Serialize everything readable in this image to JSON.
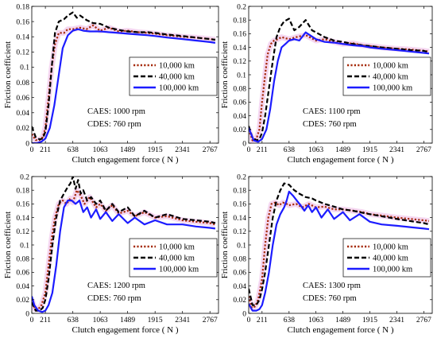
{
  "colors": {
    "series_10k": "#a52a0a",
    "series_40k": "#000000",
    "series_100k": "#1c1cff",
    "band": "#e8a6e0",
    "background": "#ffffff"
  },
  "chart_data": [
    {
      "type": "line",
      "panel": "top-left",
      "xlabel": "Clutch engagement force ( N )",
      "ylabel": "Friction coefficient",
      "xticks": [
        0,
        211,
        638,
        1063,
        1489,
        1915,
        2341,
        2767
      ],
      "yticks": [
        0,
        0.02,
        0.04,
        0.06,
        0.08,
        0.1,
        0.12,
        0.14,
        0.16,
        0.18
      ],
      "xlim": [
        0,
        2900
      ],
      "ylim": [
        0,
        0.18
      ],
      "legend_placement": "center-right",
      "annotation": [
        "CAES: 1000 rpm",
        "CDES: 760 rpm"
      ],
      "series": [
        {
          "name": "10,000 km",
          "style": "dotted",
          "x": [
            0,
            60,
            120,
            170,
            211,
            260,
            310,
            360,
            420,
            500,
            560,
            638,
            750,
            850,
            950,
            1063,
            1200,
            1350,
            1489,
            1650,
            1800,
            1915,
            2100,
            2341,
            2550,
            2767,
            2850
          ],
          "y": [
            0.012,
            0.004,
            0.004,
            0.008,
            0.02,
            0.06,
            0.1,
            0.13,
            0.145,
            0.145,
            0.15,
            0.15,
            0.152,
            0.15,
            0.155,
            0.148,
            0.152,
            0.147,
            0.148,
            0.146,
            0.145,
            0.144,
            0.142,
            0.14,
            0.139,
            0.137,
            0.136
          ]
        },
        {
          "name": "40,000 km",
          "style": "dashed",
          "x": [
            0,
            60,
            120,
            170,
            211,
            260,
            310,
            360,
            420,
            500,
            560,
            638,
            700,
            750,
            850,
            950,
            1063,
            1200,
            1350,
            1489,
            1650,
            1800,
            1915,
            2100,
            2341,
            2550,
            2767,
            2850
          ],
          "y": [
            0.022,
            0.008,
            0.005,
            0.006,
            0.015,
            0.05,
            0.1,
            0.145,
            0.16,
            0.163,
            0.168,
            0.172,
            0.165,
            0.168,
            0.162,
            0.158,
            0.157,
            0.152,
            0.149,
            0.147,
            0.146,
            0.146,
            0.145,
            0.143,
            0.141,
            0.139,
            0.137,
            0.136
          ]
        },
        {
          "name": "100,000 km",
          "style": "solid",
          "x": [
            0,
            80,
            150,
            211,
            280,
            350,
            420,
            480,
            560,
            638,
            720,
            800,
            900,
            1063,
            1200,
            1350,
            1489,
            1650,
            1800,
            1915,
            2100,
            2341,
            2550,
            2767,
            2850
          ],
          "y": [
            0.0,
            0.0,
            0.002,
            0.006,
            0.02,
            0.05,
            0.09,
            0.125,
            0.142,
            0.148,
            0.15,
            0.148,
            0.147,
            0.147,
            0.146,
            0.145,
            0.144,
            0.143,
            0.142,
            0.141,
            0.139,
            0.137,
            0.135,
            0.133,
            0.132
          ]
        }
      ]
    },
    {
      "type": "line",
      "panel": "top-right",
      "xlabel": "Clutch engagement force ( N )",
      "ylabel": "Friction coefficient",
      "xticks": [
        0,
        211,
        638,
        1063,
        1489,
        1915,
        2341,
        2767
      ],
      "yticks": [
        0,
        0.02,
        0.04,
        0.06,
        0.08,
        0.1,
        0.12,
        0.14,
        0.16,
        0.18,
        0.2
      ],
      "xlim": [
        0,
        2900
      ],
      "ylim": [
        0,
        0.2
      ],
      "legend_placement": "center-right",
      "annotation": [
        "CAES: 1100 rpm",
        "CDES: 760 rpm"
      ],
      "series": [
        {
          "name": "10,000 km",
          "style": "dotted",
          "x": [
            0,
            60,
            120,
            170,
            211,
            260,
            300,
            350,
            400,
            460,
            520,
            638,
            750,
            900,
            1063,
            1200,
            1350,
            1489,
            1650,
            1800,
            1915,
            2100,
            2341,
            2550,
            2767,
            2850
          ],
          "y": [
            0.02,
            0.004,
            0.006,
            0.02,
            0.06,
            0.1,
            0.13,
            0.145,
            0.15,
            0.152,
            0.155,
            0.152,
            0.155,
            0.158,
            0.15,
            0.152,
            0.148,
            0.145,
            0.146,
            0.143,
            0.142,
            0.14,
            0.138,
            0.137,
            0.135,
            0.134
          ]
        },
        {
          "name": "40,000 km",
          "style": "dashed",
          "x": [
            0,
            60,
            120,
            170,
            211,
            260,
            320,
            380,
            440,
            500,
            560,
            638,
            720,
            800,
            900,
            1000,
            1063,
            1200,
            1350,
            1489,
            1650,
            1800,
            1915,
            2100,
            2341,
            2550,
            2767,
            2850
          ],
          "y": [
            0.025,
            0.008,
            0.004,
            0.006,
            0.015,
            0.04,
            0.08,
            0.12,
            0.155,
            0.17,
            0.178,
            0.182,
            0.165,
            0.17,
            0.18,
            0.165,
            0.162,
            0.155,
            0.15,
            0.148,
            0.145,
            0.143,
            0.142,
            0.14,
            0.138,
            0.136,
            0.135,
            0.133
          ]
        },
        {
          "name": "100,000 km",
          "style": "solid",
          "x": [
            0,
            80,
            150,
            211,
            280,
            340,
            400,
            460,
            520,
            580,
            638,
            720,
            800,
            900,
            1063,
            1200,
            1350,
            1489,
            1650,
            1800,
            1915,
            2100,
            2341,
            2550,
            2767,
            2850
          ],
          "y": [
            0.022,
            0.004,
            0.002,
            0.006,
            0.02,
            0.05,
            0.09,
            0.12,
            0.14,
            0.145,
            0.15,
            0.152,
            0.15,
            0.162,
            0.152,
            0.148,
            0.147,
            0.145,
            0.143,
            0.142,
            0.14,
            0.138,
            0.136,
            0.134,
            0.132,
            0.131
          ]
        }
      ]
    },
    {
      "type": "line",
      "panel": "bottom-left",
      "xlabel": "Clutch engagement force ( N )",
      "ylabel": "Friction coefficient",
      "xticks": [
        0,
        211,
        638,
        1063,
        1489,
        1915,
        2341,
        2767
      ],
      "yticks": [
        0,
        0.02,
        0.04,
        0.06,
        0.08,
        0.1,
        0.12,
        0.14,
        0.16,
        0.18,
        0.2
      ],
      "xlim": [
        0,
        2900
      ],
      "ylim": [
        0,
        0.2
      ],
      "legend_placement": "center-right",
      "annotation": [
        "CAES: 1200 rpm",
        "CDES: 760 rpm"
      ],
      "series": [
        {
          "name": "10,000 km",
          "style": "dotted",
          "x": [
            0,
            50,
            100,
            150,
            211,
            260,
            310,
            360,
            420,
            480,
            540,
            600,
            638,
            700,
            760,
            820,
            900,
            1000,
            1063,
            1150,
            1250,
            1350,
            1489,
            1600,
            1750,
            1915,
            2100,
            2341,
            2550,
            2767,
            2850
          ],
          "y": [
            0.02,
            0.006,
            0.006,
            0.012,
            0.03,
            0.07,
            0.11,
            0.14,
            0.16,
            0.165,
            0.16,
            0.168,
            0.162,
            0.18,
            0.172,
            0.16,
            0.17,
            0.155,
            0.16,
            0.15,
            0.158,
            0.146,
            0.15,
            0.142,
            0.148,
            0.14,
            0.142,
            0.136,
            0.134,
            0.132,
            0.13
          ]
        },
        {
          "name": "40,000 km",
          "style": "dashed",
          "x": [
            0,
            60,
            120,
            170,
            211,
            260,
            320,
            380,
            440,
            500,
            560,
            600,
            638,
            680,
            720,
            760,
            800,
            860,
            920,
            1000,
            1063,
            1150,
            1250,
            1350,
            1489,
            1600,
            1750,
            1915,
            2100,
            2341,
            2550,
            2767,
            2850
          ],
          "y": [
            0.016,
            0.004,
            0.004,
            0.008,
            0.02,
            0.05,
            0.1,
            0.14,
            0.165,
            0.175,
            0.185,
            0.19,
            0.2,
            0.182,
            0.195,
            0.175,
            0.18,
            0.165,
            0.17,
            0.16,
            0.165,
            0.15,
            0.16,
            0.148,
            0.155,
            0.142,
            0.15,
            0.14,
            0.145,
            0.138,
            0.136,
            0.134,
            0.132
          ]
        },
        {
          "name": "100,000 km",
          "style": "solid",
          "x": [
            0,
            40,
            100,
            160,
            211,
            260,
            320,
            380,
            440,
            500,
            560,
            620,
            680,
            740,
            800,
            860,
            920,
            1000,
            1063,
            1150,
            1250,
            1350,
            1489,
            1600,
            1750,
            1915,
            2100,
            2341,
            2550,
            2767,
            2850
          ],
          "y": [
            0.025,
            0.012,
            0.004,
            0.002,
            0.004,
            0.012,
            0.03,
            0.07,
            0.12,
            0.155,
            0.165,
            0.165,
            0.16,
            0.165,
            0.148,
            0.155,
            0.14,
            0.152,
            0.138,
            0.148,
            0.135,
            0.145,
            0.132,
            0.14,
            0.13,
            0.136,
            0.13,
            0.13,
            0.127,
            0.125,
            0.124
          ]
        }
      ]
    },
    {
      "type": "line",
      "panel": "bottom-right",
      "xlabel": "Clutch engagement force ( N )",
      "ylabel": "Friction coefficient",
      "xticks": [
        0,
        211,
        638,
        1063,
        1489,
        1915,
        2341,
        2767
      ],
      "yticks": [
        0,
        0.02,
        0.04,
        0.06,
        0.08,
        0.1,
        0.12,
        0.14,
        0.16,
        0.18,
        0.2
      ],
      "xlim": [
        0,
        2900
      ],
      "ylim": [
        0,
        0.2
      ],
      "legend_placement": "center-right",
      "annotation": [
        "CAES: 1300 rpm",
        "CDES: 760 rpm"
      ],
      "series": [
        {
          "name": "10,000 km",
          "style": "dotted",
          "x": [
            0,
            50,
            100,
            150,
            211,
            260,
            310,
            360,
            420,
            480,
            540,
            600,
            638,
            750,
            850,
            950,
            1063,
            1200,
            1350,
            1489,
            1650,
            1800,
            1915,
            2100,
            2341,
            2550,
            2767,
            2850
          ],
          "y": [
            0.025,
            0.008,
            0.01,
            0.02,
            0.05,
            0.1,
            0.14,
            0.16,
            0.162,
            0.158,
            0.162,
            0.16,
            0.158,
            0.16,
            0.155,
            0.16,
            0.155,
            0.156,
            0.152,
            0.152,
            0.15,
            0.148,
            0.145,
            0.143,
            0.14,
            0.138,
            0.136,
            0.135
          ]
        },
        {
          "name": "40,000 km",
          "style": "dashed",
          "x": [
            0,
            60,
            120,
            170,
            211,
            260,
            320,
            380,
            440,
            500,
            560,
            638,
            720,
            800,
            900,
            1000,
            1063,
            1200,
            1350,
            1489,
            1650,
            1800,
            1915,
            2100,
            2341,
            2550,
            2767,
            2850
          ],
          "y": [
            0.036,
            0.012,
            0.012,
            0.02,
            0.035,
            0.06,
            0.1,
            0.14,
            0.165,
            0.18,
            0.19,
            0.188,
            0.18,
            0.175,
            0.17,
            0.168,
            0.165,
            0.16,
            0.156,
            0.152,
            0.15,
            0.147,
            0.145,
            0.142,
            0.138,
            0.135,
            0.132,
            0.13
          ]
        },
        {
          "name": "100,000 km",
          "style": "solid",
          "x": [
            0,
            60,
            120,
            170,
            211,
            260,
            320,
            380,
            440,
            500,
            560,
            600,
            638,
            700,
            760,
            820,
            880,
            940,
            1000,
            1063,
            1150,
            1250,
            1350,
            1489,
            1600,
            1750,
            1915,
            2100,
            2341,
            2550,
            2767,
            2850
          ],
          "y": [
            0.014,
            0.004,
            0.004,
            0.006,
            0.012,
            0.03,
            0.06,
            0.1,
            0.13,
            0.145,
            0.155,
            0.165,
            0.178,
            0.172,
            0.165,
            0.158,
            0.15,
            0.158,
            0.148,
            0.155,
            0.14,
            0.152,
            0.138,
            0.148,
            0.136,
            0.145,
            0.134,
            0.13,
            0.128,
            0.126,
            0.124,
            0.123
          ]
        }
      ]
    }
  ]
}
